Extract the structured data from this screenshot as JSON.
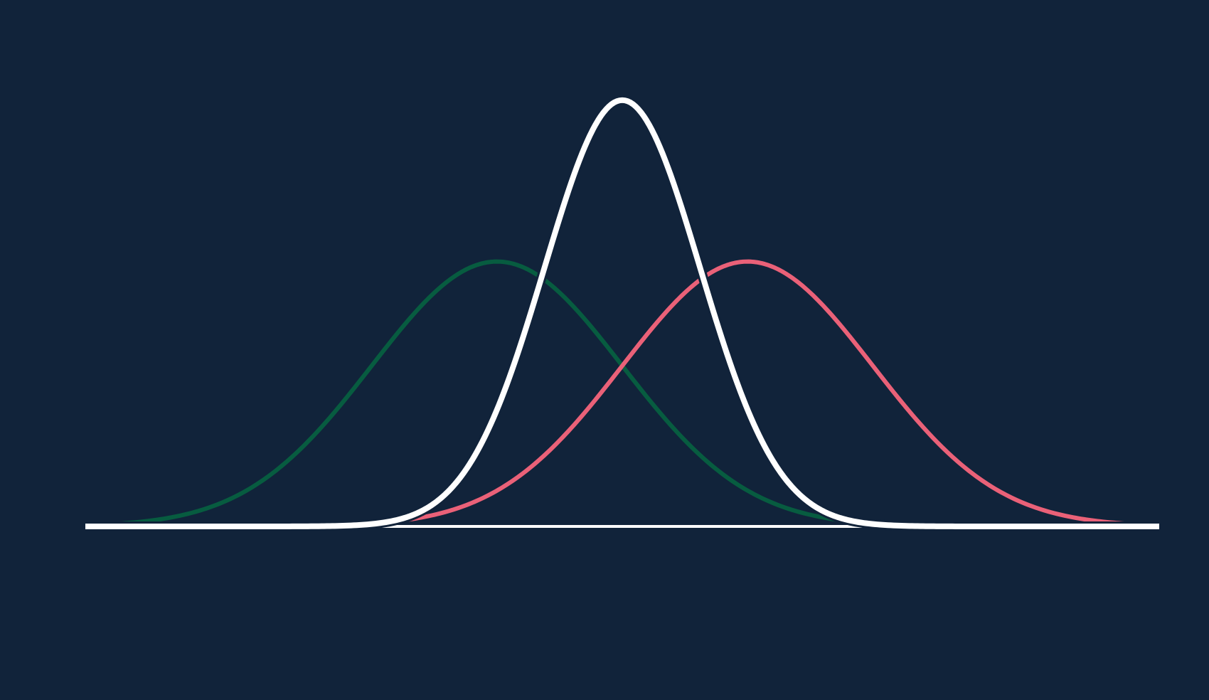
{
  "colors": {
    "background": "#11233a"
  },
  "chart_data": {
    "type": "line",
    "title": "",
    "xlabel": "",
    "ylabel": "",
    "xlim": [
      -6,
      6
    ],
    "ylim": [
      0,
      0.45
    ],
    "grid": false,
    "legend": "none",
    "axes_visible": false,
    "baseline_color": "#ffffff",
    "series": [
      {
        "kind": "normal-pdf",
        "mu": -1.4,
        "sigma": 1.4,
        "color": "#075c40",
        "stroke": 6
      },
      {
        "kind": "normal-pdf",
        "mu": 1.4,
        "sigma": 1.4,
        "color": "#ea6178",
        "stroke": 6
      },
      {
        "kind": "normal-pdf",
        "mu": 0.0,
        "sigma": 0.87,
        "color": "#ffffff",
        "stroke": 8,
        "outline": "#11233a"
      }
    ]
  }
}
